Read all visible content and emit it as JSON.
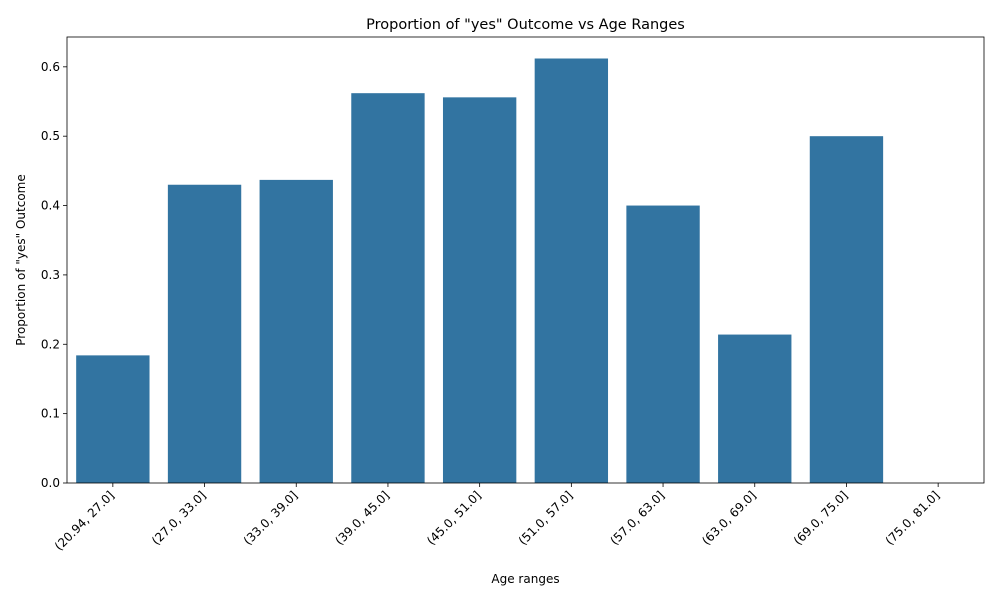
{
  "chart_data": {
    "type": "bar",
    "title": "Proportion of \"yes\" Outcome vs Age Ranges",
    "xlabel": "Age ranges",
    "ylabel": "Proportion of \"yes\" Outcome",
    "categories": [
      "(20.94, 27.0]",
      "(27.0, 33.0]",
      "(33.0, 39.0]",
      "(39.0, 45.0]",
      "(45.0, 51.0]",
      "(51.0, 57.0]",
      "(57.0, 63.0]",
      "(63.0, 69.0]",
      "(69.0, 75.0]",
      "(75.0, 81.0]"
    ],
    "values": [
      0.184,
      0.43,
      0.437,
      0.562,
      0.556,
      0.612,
      0.4,
      0.214,
      0.5,
      0.0
    ],
    "ylim": [
      0,
      0.643
    ],
    "yticks": [
      0.0,
      0.1,
      0.2,
      0.3,
      0.4,
      0.5,
      0.6
    ],
    "ytick_labels": [
      "0.0",
      "0.1",
      "0.2",
      "0.3",
      "0.4",
      "0.5",
      "0.6"
    ],
    "bar_color": "#3274a1",
    "grid": false,
    "legend": "none"
  }
}
